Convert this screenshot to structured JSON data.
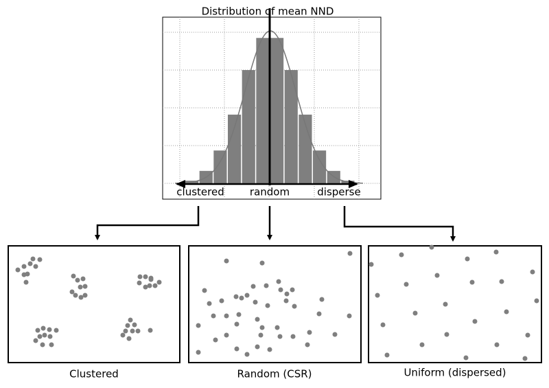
{
  "histogram": {
    "title": "Distribution of mean NND",
    "values": [
      0.07,
      0.33,
      0.87,
      1.82,
      3.0,
      3.85,
      3.85,
      3.0,
      1.82,
      0.87,
      0.33,
      0.07
    ],
    "ylim": [
      0,
      4
    ],
    "color": "#7f7f7f",
    "axis_labels": [
      "clustered",
      "random",
      "disperse"
    ]
  },
  "panels": [
    {
      "caption": "Clustered"
    },
    {
      "caption": "Random (CSR)"
    },
    {
      "caption": "Uniform (dispersed)"
    }
  ]
}
